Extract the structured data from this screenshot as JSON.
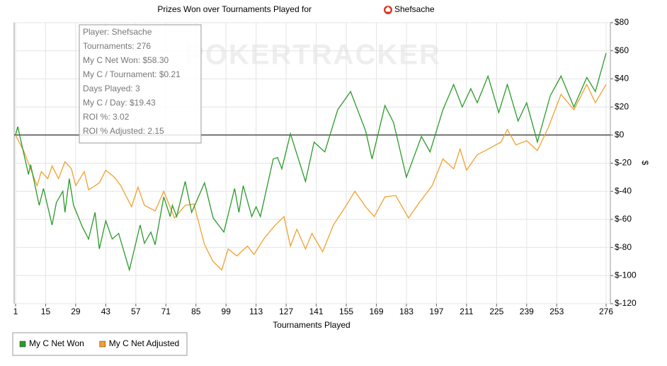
{
  "chart_data": {
    "type": "line",
    "title": "Prizes Won over Tournaments Played for",
    "player": "Shefsache",
    "watermark": "POKERTRACKER",
    "xlabel": "Tournaments Played",
    "ylabel": "$",
    "tooltip": [
      "Player: Shefsache",
      "Tournaments: 276",
      "My C Net Won: $58.30",
      "My C / Tournament: $0.21",
      "Days Played: 3",
      "My C / Day: $19.43",
      "ROI %: 3.02",
      "ROI % Adjusted: 2.15"
    ],
    "xlim": [
      1,
      276
    ],
    "xticks": [
      1,
      15,
      29,
      43,
      57,
      71,
      85,
      99,
      113,
      127,
      141,
      155,
      169,
      183,
      197,
      211,
      225,
      239,
      253,
      276
    ],
    "ylim": [
      -120,
      80
    ],
    "yticks": [
      {
        "value": -120,
        "label": "$-120"
      },
      {
        "value": -100,
        "label": "$-100"
      },
      {
        "value": -80,
        "label": "$-80"
      },
      {
        "value": -60,
        "label": "$-60"
      },
      {
        "value": -40,
        "label": "$-40"
      },
      {
        "value": -20,
        "label": "$-20"
      },
      {
        "value": 0,
        "label": "$0"
      },
      {
        "value": 20,
        "label": "$20"
      },
      {
        "value": 40,
        "label": "$40"
      },
      {
        "value": 60,
        "label": "$60"
      },
      {
        "value": 80,
        "label": "$80"
      }
    ],
    "grid": true,
    "series": [
      {
        "name": "My C Net Won",
        "color": "#2a9a2a",
        "x": [
          1,
          2,
          7,
          8,
          12,
          14,
          18,
          20,
          23,
          24,
          26,
          28,
          32,
          35,
          38,
          40,
          43,
          46,
          49,
          54,
          59,
          61,
          64,
          66,
          70,
          73,
          74,
          76,
          80,
          83,
          89,
          93,
          98,
          103,
          105,
          107,
          111,
          113,
          115,
          121,
          123,
          125,
          129,
          136,
          140,
          145,
          151,
          157,
          164,
          167,
          173,
          177,
          183,
          190,
          194,
          200,
          205,
          209,
          213,
          216,
          221,
          226,
          230,
          235,
          239,
          244,
          250,
          255,
          261,
          267,
          271,
          276
        ],
        "values": [
          0,
          6,
          -28,
          -21,
          -50,
          -38,
          -64,
          -48,
          -40,
          -55,
          -31,
          -50,
          -65,
          -74,
          -55,
          -81,
          -61,
          -74,
          -70,
          -96,
          -64,
          -77,
          -69,
          -78,
          -44,
          -58,
          -50,
          -58,
          -33,
          -55,
          -34,
          -59,
          -69,
          -38,
          -55,
          -36,
          -58,
          -51,
          -58,
          -17,
          -16,
          -24,
          1,
          -33,
          -5,
          -12,
          18,
          31,
          3,
          -17,
          21,
          9,
          -30,
          -1,
          -12,
          18,
          36,
          20,
          33,
          23,
          42,
          16,
          36,
          10,
          23,
          -5,
          28,
          42,
          20,
          41,
          31,
          58.3
        ]
      },
      {
        "name": "My C Net Adjusted",
        "color": "#f0a030",
        "x": [
          1,
          5,
          11,
          13,
          16,
          18,
          21,
          24,
          27,
          29,
          33,
          35,
          40,
          43,
          47,
          50,
          55,
          58,
          61,
          66,
          70,
          75,
          80,
          84,
          89,
          93,
          97,
          100,
          104,
          109,
          112,
          117,
          122,
          126,
          129,
          132,
          136,
          139,
          144,
          149,
          155,
          159,
          164,
          168,
          173,
          178,
          184,
          189,
          195,
          200,
          205,
          208,
          211,
          216,
          221,
          227,
          230,
          234,
          239,
          244,
          249,
          255,
          261,
          267,
          271,
          276
        ],
        "values": [
          0,
          -12,
          -36,
          -26,
          -31,
          -22,
          -31,
          -19,
          -24,
          -36,
          -26,
          -39,
          -34,
          -25,
          -30,
          -36,
          -51,
          -37,
          -50,
          -54,
          -40,
          -59,
          -50,
          -49,
          -78,
          -90,
          -96,
          -81,
          -86,
          -79,
          -85,
          -73,
          -64,
          -58,
          -79,
          -67,
          -81,
          -70,
          -83,
          -64,
          -50,
          -40,
          -51,
          -58,
          -44,
          -43,
          -59,
          -48,
          -36,
          -17,
          -24,
          -10,
          -25,
          -14,
          -10,
          -5,
          4,
          -7,
          -4,
          -11,
          5,
          29,
          18,
          36,
          23,
          36
        ]
      }
    ]
  }
}
